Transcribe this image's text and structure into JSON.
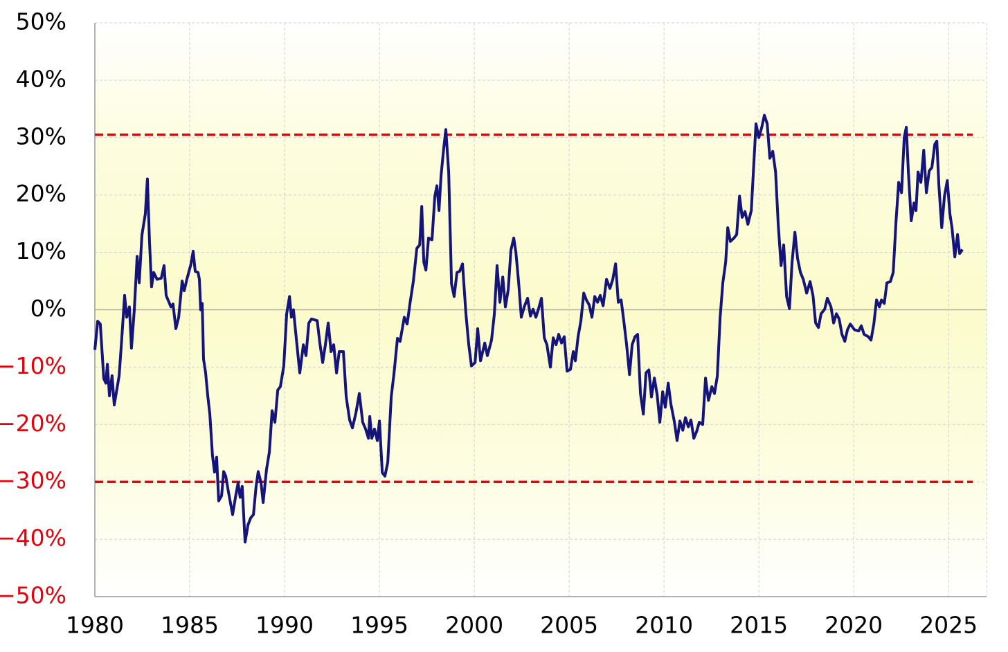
{
  "chart_data": {
    "type": "line",
    "color": "#14147a",
    "grid": true,
    "negative_label_color": "#e8000b",
    "xlim": [
      1980,
      2027
    ],
    "xticks": [
      1980,
      1985,
      1990,
      1995,
      2000,
      2005,
      2010,
      2015,
      2020,
      2025
    ],
    "ylim": [
      -50,
      50
    ],
    "yticks": [
      {
        "value": 50,
        "label": "50%"
      },
      {
        "value": 40,
        "label": "40%"
      },
      {
        "value": 30,
        "label": "30%"
      },
      {
        "value": 20,
        "label": "20%"
      },
      {
        "value": 10,
        "label": "10%"
      },
      {
        "value": 0,
        "label": "0%"
      },
      {
        "value": -10,
        "label": "−10%"
      },
      {
        "value": -20,
        "label": "−20%"
      },
      {
        "value": -30,
        "label": "−30%"
      },
      {
        "value": -40,
        "label": "−40%"
      },
      {
        "value": -50,
        "label": "−50%"
      }
    ],
    "reference_lines": [
      {
        "value": 30.5,
        "color": "#e8000b"
      },
      {
        "value": -30,
        "color": "#e8000b"
      }
    ],
    "x": [
      1980.0,
      1980.15,
      1980.29,
      1980.47,
      1980.58,
      1980.66,
      1980.77,
      1980.91,
      1981.02,
      1981.28,
      1981.42,
      1981.57,
      1981.68,
      1981.82,
      1981.93,
      1982.08,
      1982.23,
      1982.34,
      1982.48,
      1982.66,
      1982.77,
      1982.88,
      1982.99,
      1983.1,
      1983.28,
      1983.5,
      1983.65,
      1983.76,
      1984.01,
      1984.12,
      1984.27,
      1984.42,
      1984.6,
      1984.71,
      1984.85,
      1985.07,
      1985.18,
      1985.29,
      1985.44,
      1985.51,
      1985.58,
      1985.66,
      1985.73,
      1985.84,
      1985.95,
      1986.06,
      1986.2,
      1986.31,
      1986.42,
      1986.53,
      1986.68,
      1986.79,
      1986.9,
      1987.04,
      1987.26,
      1987.41,
      1987.55,
      1987.66,
      1987.77,
      1987.92,
      1988.07,
      1988.21,
      1988.36,
      1988.5,
      1988.61,
      1988.76,
      1988.87,
      1989.05,
      1989.2,
      1989.34,
      1989.49,
      1989.64,
      1989.78,
      1989.96,
      1990.11,
      1990.26,
      1990.36,
      1990.47,
      1990.58,
      1990.8,
      1990.99,
      1991.13,
      1991.28,
      1991.42,
      1991.72,
      1991.86,
      1992.01,
      1992.15,
      1992.3,
      1992.45,
      1992.59,
      1992.74,
      1992.88,
      1993.1,
      1993.25,
      1993.43,
      1993.58,
      1993.76,
      1993.94,
      1994.12,
      1994.27,
      1994.42,
      1994.49,
      1994.6,
      1994.74,
      1994.89,
      1995.0,
      1995.15,
      1995.29,
      1995.44,
      1995.62,
      1995.77,
      1995.95,
      1996.09,
      1996.31,
      1996.46,
      1996.61,
      1996.79,
      1996.97,
      1997.12,
      1997.23,
      1997.34,
      1997.45,
      1997.59,
      1997.77,
      1997.92,
      1998.03,
      1998.14,
      1998.25,
      1998.39,
      1998.5,
      1998.65,
      1998.8,
      1998.94,
      1999.09,
      1999.23,
      1999.38,
      1999.56,
      1999.71,
      1999.85,
      2000.04,
      2000.18,
      2000.33,
      2000.55,
      2000.69,
      2000.91,
      2001.06,
      2001.2,
      2001.35,
      2001.5,
      2001.64,
      2001.79,
      2001.93,
      2002.08,
      2002.19,
      2002.34,
      2002.48,
      2002.63,
      2002.81,
      2002.96,
      2003.1,
      2003.25,
      2003.39,
      2003.54,
      2003.69,
      2003.83,
      2004.01,
      2004.16,
      2004.31,
      2004.45,
      2004.6,
      2004.74,
      2004.89,
      2005.07,
      2005.22,
      2005.33,
      2005.47,
      2005.62,
      2005.77,
      2005.91,
      2006.06,
      2006.2,
      2006.35,
      2006.5,
      2006.64,
      2006.79,
      2006.97,
      2007.15,
      2007.3,
      2007.45,
      2007.59,
      2007.74,
      2007.88,
      2008.03,
      2008.18,
      2008.32,
      2008.47,
      2008.61,
      2008.76,
      2008.91,
      2009.05,
      2009.2,
      2009.34,
      2009.49,
      2009.64,
      2009.78,
      2009.93,
      2010.07,
      2010.22,
      2010.36,
      2010.55,
      2010.69,
      2010.84,
      2010.99,
      2011.13,
      2011.28,
      2011.42,
      2011.57,
      2011.72,
      2011.86,
      2012.04,
      2012.19,
      2012.34,
      2012.52,
      2012.66,
      2012.81,
      2012.96,
      2013.1,
      2013.25,
      2013.36,
      2013.5,
      2013.69,
      2013.83,
      2013.98,
      2014.12,
      2014.27,
      2014.42,
      2014.6,
      2014.74,
      2014.85,
      2015.0,
      2015.15,
      2015.29,
      2015.44,
      2015.58,
      2015.73,
      2015.88,
      2016.02,
      2016.17,
      2016.31,
      2016.46,
      2016.61,
      2016.75,
      2016.9,
      2017.04,
      2017.19,
      2017.34,
      2017.52,
      2017.7,
      2017.85,
      2017.99,
      2018.14,
      2018.28,
      2018.47,
      2018.61,
      2018.8,
      2018.94,
      2019.09,
      2019.23,
      2019.38,
      2019.53,
      2019.67,
      2019.82,
      2020.04,
      2020.26,
      2020.4,
      2020.55,
      2020.77,
      2020.91,
      2021.06,
      2021.2,
      2021.35,
      2021.46,
      2021.61,
      2021.75,
      2021.93,
      2022.08,
      2022.23,
      2022.37,
      2022.52,
      2022.66,
      2022.77,
      2022.88,
      2023.03,
      2023.18,
      2023.28,
      2023.39,
      2023.54,
      2023.69,
      2023.83,
      2023.98,
      2024.12,
      2024.27,
      2024.38,
      2024.49,
      2024.64,
      2024.78,
      2024.93,
      2025.07,
      2025.18,
      2025.33,
      2025.47,
      2025.58,
      2025.73
    ],
    "values": [
      -7,
      -2,
      -2.5,
      -12,
      -12.8,
      -9.5,
      -15,
      -11.5,
      -16.6,
      -11.5,
      -5,
      2.5,
      -1.3,
      0.5,
      -6.7,
      0,
      9.3,
      4.7,
      13,
      16.7,
      22.8,
      12,
      4,
      6.5,
      5.3,
      5.5,
      7.7,
      2.5,
      0.5,
      1,
      -3.3,
      -1.3,
      5,
      3.3,
      5.3,
      8,
      10.2,
      6.7,
      6.5,
      5.3,
      0,
      1.1,
      -8.6,
      -11,
      -15,
      -18.2,
      -25.4,
      -28.3,
      -25.7,
      -33.3,
      -32.4,
      -28.2,
      -29,
      -31.7,
      -35.7,
      -32.7,
      -30.2,
      -32.7,
      -30.8,
      -40.5,
      -37.5,
      -36.3,
      -35.7,
      -30.8,
      -28.2,
      -30.2,
      -33.6,
      -27.8,
      -24.8,
      -17.6,
      -19.6,
      -14,
      -13.4,
      -9.8,
      -0.7,
      2.3,
      -1.3,
      0,
      -3.7,
      -11,
      -6.1,
      -8,
      -2.3,
      -1.6,
      -1.9,
      -5.8,
      -9.2,
      -6.1,
      -2.3,
      -7.3,
      -6.1,
      -11,
      -7.3,
      -7.3,
      -15.2,
      -19.2,
      -20.6,
      -18,
      -14.6,
      -19.6,
      -20.8,
      -22.4,
      -18.6,
      -22.4,
      -20.8,
      -22.8,
      -19.4,
      -28.4,
      -29,
      -26.6,
      -15.2,
      -11,
      -5,
      -5.5,
      -1.3,
      -2.5,
      1.1,
      5,
      10.7,
      11.3,
      18,
      8.3,
      6.9,
      12.5,
      12.2,
      19.8,
      21.6,
      17.3,
      23.4,
      28.2,
      31.4,
      24,
      4.5,
      2.3,
      6.5,
      6.7,
      8,
      -0.7,
      -6.1,
      -9.8,
      -9.2,
      -3.3,
      -8.9,
      -5.8,
      -8,
      -5.3,
      -0.7,
      7.7,
      1.3,
      5.7,
      0.5,
      3.5,
      10.4,
      12.5,
      10.1,
      4.7,
      -1.3,
      0.5,
      2,
      -1.1,
      0.1,
      -1.3,
      0.2,
      2,
      -4.9,
      -6.1,
      -10,
      -4.9,
      -6.1,
      -4.3,
      -5.8,
      -4.7,
      -10.7,
      -10.4,
      -7.3,
      -8.9,
      -4.7,
      -1.9,
      2.9,
      1.7,
      0.8,
      -1.3,
      2.3,
      1.3,
      2.5,
      0.7,
      5.3,
      3.7,
      5.3,
      8,
      1.3,
      1.7,
      -1.9,
      -6.1,
      -11.3,
      -6.1,
      -4.7,
      -4.3,
      -14.6,
      -18.2,
      -11,
      -10.5,
      -15.2,
      -11.9,
      -14.9,
      -19.6,
      -14.3,
      -17,
      -12.8,
      -16.4,
      -19.6,
      -22.8,
      -19.4,
      -21,
      -18.8,
      -20.4,
      -19.2,
      -22.4,
      -21.2,
      -19.6,
      -20,
      -11.9,
      -15.8,
      -13.4,
      -14.6,
      -11.6,
      -1.3,
      4.7,
      8.3,
      14.3,
      11.9,
      12.5,
      13.1,
      19.8,
      16.1,
      17.1,
      14.9,
      17.3,
      25.8,
      32.4,
      30,
      31.8,
      33.9,
      32.4,
      26.4,
      27.6,
      24,
      14.9,
      7.7,
      11.3,
      2.3,
      0.2,
      8.3,
      13.5,
      8.9,
      6.5,
      5.3,
      2.9,
      4.9,
      2.5,
      -2.3,
      -3.1,
      -0.7,
      0.1,
      2,
      0.5,
      -2.3,
      -0.7,
      -1.6,
      -4.3,
      -5.5,
      -3.5,
      -2.5,
      -3.5,
      -3.7,
      -2.8,
      -4.3,
      -4.7,
      -5.3,
      -2.5,
      1.7,
      0.5,
      1.7,
      1.1,
      4.7,
      4.9,
      6.5,
      15.5,
      22.2,
      20.4,
      30,
      31.8,
      24,
      15.5,
      18.6,
      17.3,
      24,
      22.2,
      27.8,
      20.4,
      24.2,
      24.8,
      28.8,
      29.4,
      21.6,
      14.3,
      19.8,
      22.5,
      16.7,
      14.3,
      9.2,
      13.1,
      9.8,
      10.5
    ]
  }
}
